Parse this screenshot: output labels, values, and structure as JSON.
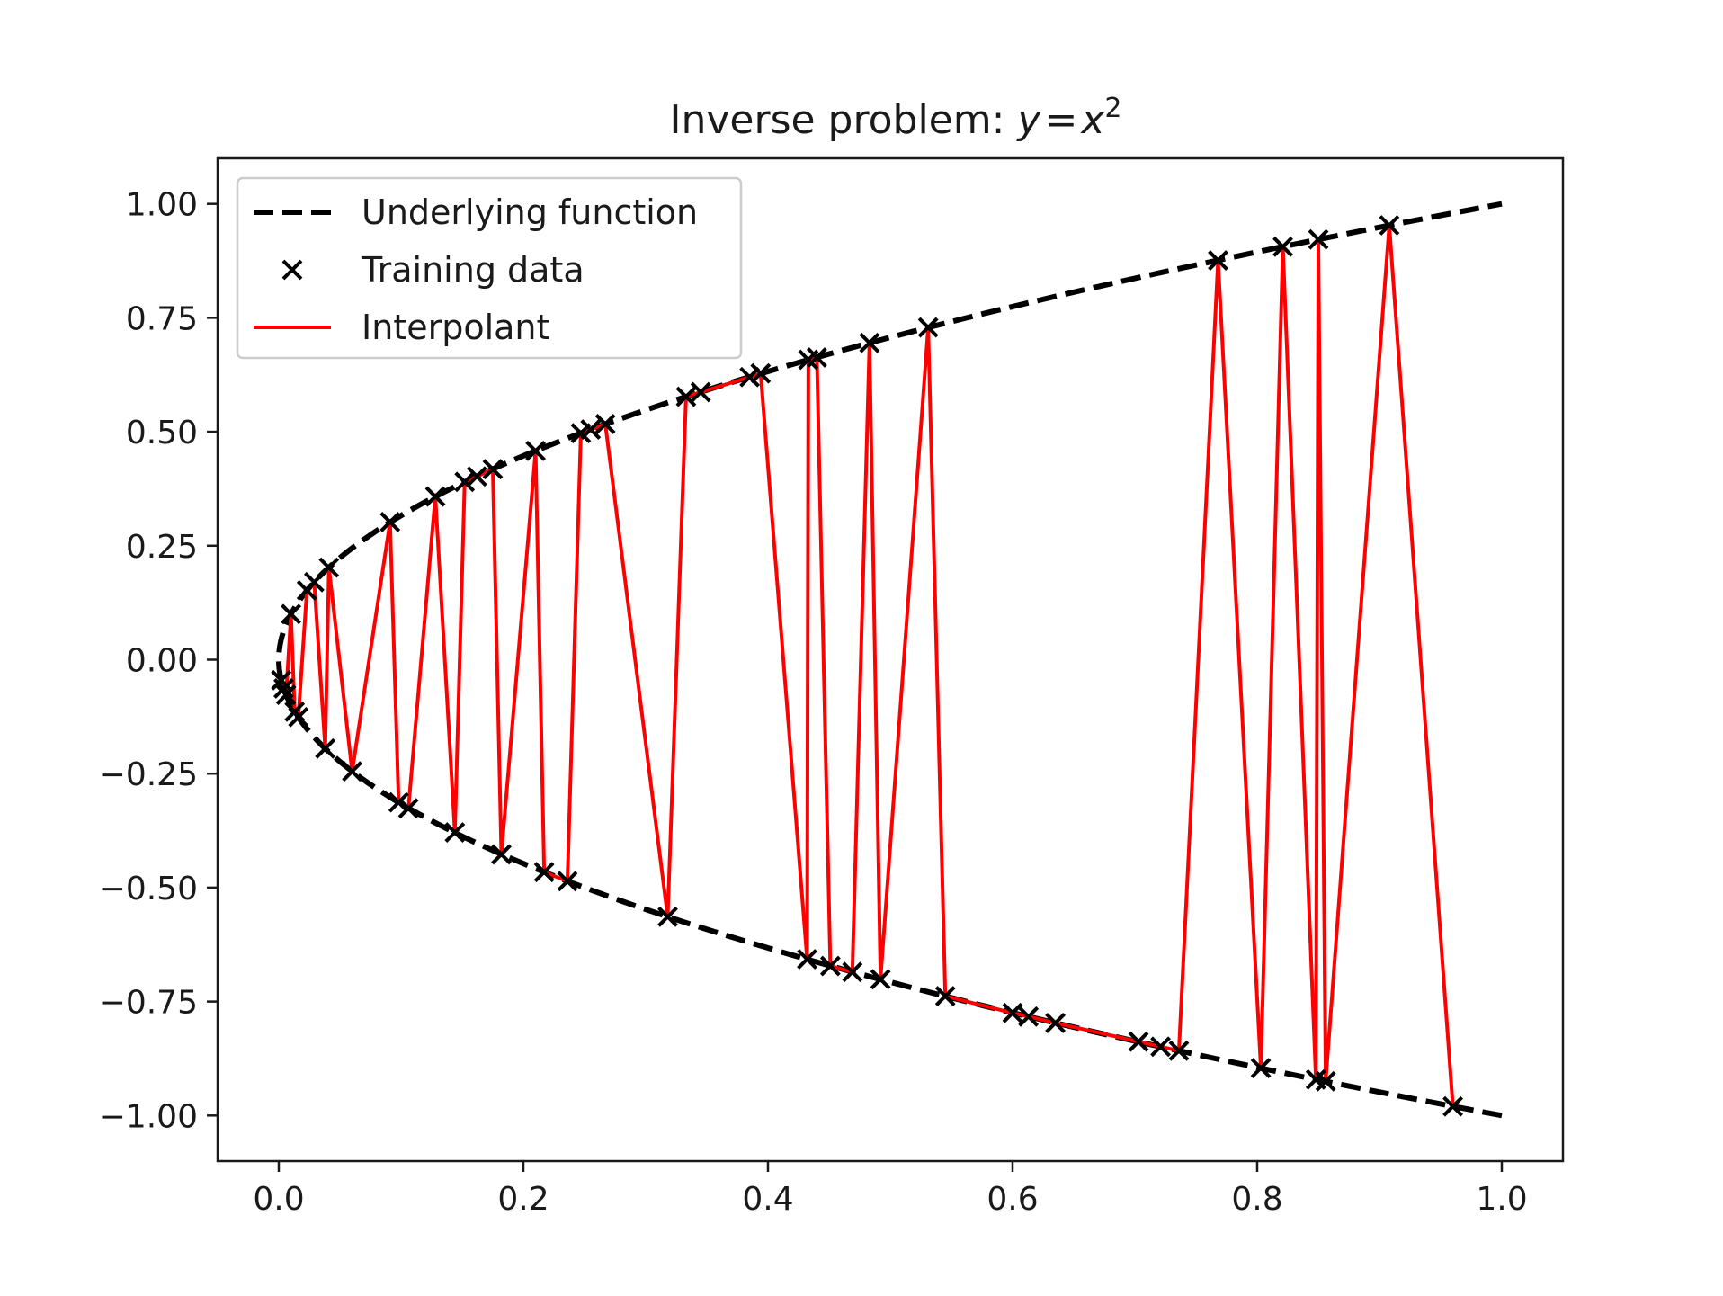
{
  "chart_data": {
    "type": "line",
    "title": "Inverse problem: ",
    "title_math": {
      "var_y": "y",
      "equals": "=",
      "var_x": "x",
      "exponent": "2"
    },
    "xlabel": "",
    "ylabel": "",
    "xlim": [
      -0.05,
      1.05
    ],
    "ylim": [
      -1.1,
      1.1
    ],
    "x_ticks": [
      0.0,
      0.2,
      0.4,
      0.6,
      0.8,
      1.0
    ],
    "x_tick_labels": [
      "0.0",
      "0.2",
      "0.4",
      "0.6",
      "0.8",
      "1.0"
    ],
    "y_ticks": [
      1.0,
      0.75,
      0.5,
      0.25,
      0.0,
      -0.25,
      -0.5,
      -0.75,
      -1.0
    ],
    "y_tick_labels": [
      "1.00",
      "0.75",
      "0.50",
      "0.25",
      "0.00",
      "−0.25",
      "−0.50",
      "−0.75",
      "−1.00"
    ],
    "grid": false,
    "legend_position": "upper-left",
    "legend": [
      {
        "label": "Underlying function",
        "style": "dashed-line",
        "color": "#000000"
      },
      {
        "label": "Training data",
        "style": "x-marker",
        "color": "#000000"
      },
      {
        "label": "Interpolant",
        "style": "solid-line",
        "color": "#ff0000"
      }
    ],
    "series": [
      {
        "name": "Underlying function",
        "kind": "dashed",
        "color": "#000000",
        "function": "y^2 = x",
        "y_range": [
          -1.0,
          1.0
        ]
      },
      {
        "name": "Training data",
        "kind": "markers",
        "color": "#000000",
        "points": [
          [
            0.96,
            -0.98
          ],
          [
            0.908,
            0.953
          ],
          [
            0.856,
            -0.925
          ],
          [
            0.85,
            0.922
          ],
          [
            0.848,
            -0.921
          ],
          [
            0.821,
            0.906
          ],
          [
            0.803,
            -0.896
          ],
          [
            0.768,
            0.876
          ],
          [
            0.736,
            -0.858
          ],
          [
            0.721,
            -0.849
          ],
          [
            0.703,
            -0.838
          ],
          [
            0.635,
            -0.797
          ],
          [
            0.613,
            -0.783
          ],
          [
            0.6,
            -0.775
          ],
          [
            0.545,
            -0.738
          ],
          [
            0.531,
            0.729
          ],
          [
            0.492,
            -0.701
          ],
          [
            0.483,
            0.695
          ],
          [
            0.469,
            -0.685
          ],
          [
            0.451,
            -0.672
          ],
          [
            0.44,
            0.663
          ],
          [
            0.433,
            0.658
          ],
          [
            0.432,
            -0.657
          ],
          [
            0.394,
            0.628
          ],
          [
            0.385,
            0.62
          ],
          [
            0.345,
            0.587
          ],
          [
            0.333,
            0.577
          ],
          [
            0.318,
            -0.564
          ],
          [
            0.267,
            0.517
          ],
          [
            0.255,
            0.505
          ],
          [
            0.247,
            0.497
          ],
          [
            0.236,
            -0.486
          ],
          [
            0.217,
            -0.466
          ],
          [
            0.21,
            0.458
          ],
          [
            0.182,
            -0.427
          ],
          [
            0.175,
            0.418
          ],
          [
            0.162,
            0.402
          ],
          [
            0.152,
            0.39
          ],
          [
            0.144,
            -0.379
          ],
          [
            0.128,
            0.358
          ],
          [
            0.106,
            -0.326
          ],
          [
            0.098,
            -0.313
          ],
          [
            0.091,
            0.302
          ],
          [
            0.06,
            -0.245
          ],
          [
            0.041,
            0.202
          ],
          [
            0.038,
            -0.195
          ],
          [
            0.029,
            0.17
          ],
          [
            0.023,
            0.152
          ],
          [
            0.016,
            -0.126
          ],
          [
            0.013,
            -0.114
          ],
          [
            0.01,
            0.1
          ],
          [
            0.006,
            -0.077
          ],
          [
            0.004,
            -0.063
          ],
          [
            0.002,
            -0.045
          ]
        ]
      },
      {
        "name": "Interpolant",
        "kind": "solid",
        "color": "#ff0000",
        "points": [
          [
            0.002,
            -0.045
          ],
          [
            0.004,
            -0.063
          ],
          [
            0.006,
            -0.077
          ],
          [
            0.01,
            0.1
          ],
          [
            0.013,
            -0.114
          ],
          [
            0.016,
            -0.126
          ],
          [
            0.023,
            0.152
          ],
          [
            0.029,
            0.17
          ],
          [
            0.038,
            -0.195
          ],
          [
            0.041,
            0.202
          ],
          [
            0.06,
            -0.245
          ],
          [
            0.091,
            0.302
          ],
          [
            0.098,
            -0.313
          ],
          [
            0.106,
            -0.326
          ],
          [
            0.128,
            0.358
          ],
          [
            0.144,
            -0.379
          ],
          [
            0.152,
            0.39
          ],
          [
            0.162,
            0.402
          ],
          [
            0.175,
            0.418
          ],
          [
            0.182,
            -0.427
          ],
          [
            0.21,
            0.458
          ],
          [
            0.217,
            -0.466
          ],
          [
            0.236,
            -0.486
          ],
          [
            0.247,
            0.497
          ],
          [
            0.255,
            0.505
          ],
          [
            0.267,
            0.517
          ],
          [
            0.318,
            -0.564
          ],
          [
            0.333,
            0.577
          ],
          [
            0.345,
            0.587
          ],
          [
            0.385,
            0.62
          ],
          [
            0.394,
            0.628
          ],
          [
            0.432,
            -0.657
          ],
          [
            0.433,
            0.658
          ],
          [
            0.44,
            0.663
          ],
          [
            0.451,
            -0.672
          ],
          [
            0.469,
            -0.685
          ],
          [
            0.483,
            0.695
          ],
          [
            0.492,
            -0.701
          ],
          [
            0.531,
            0.729
          ],
          [
            0.545,
            -0.738
          ],
          [
            0.6,
            -0.775
          ],
          [
            0.613,
            -0.783
          ],
          [
            0.635,
            -0.797
          ],
          [
            0.703,
            -0.838
          ],
          [
            0.721,
            -0.849
          ],
          [
            0.736,
            -0.858
          ],
          [
            0.768,
            0.876
          ],
          [
            0.803,
            -0.896
          ],
          [
            0.821,
            0.906
          ],
          [
            0.848,
            -0.921
          ],
          [
            0.85,
            0.922
          ],
          [
            0.856,
            -0.925
          ],
          [
            0.908,
            0.953
          ],
          [
            0.96,
            -0.98
          ]
        ]
      }
    ]
  }
}
